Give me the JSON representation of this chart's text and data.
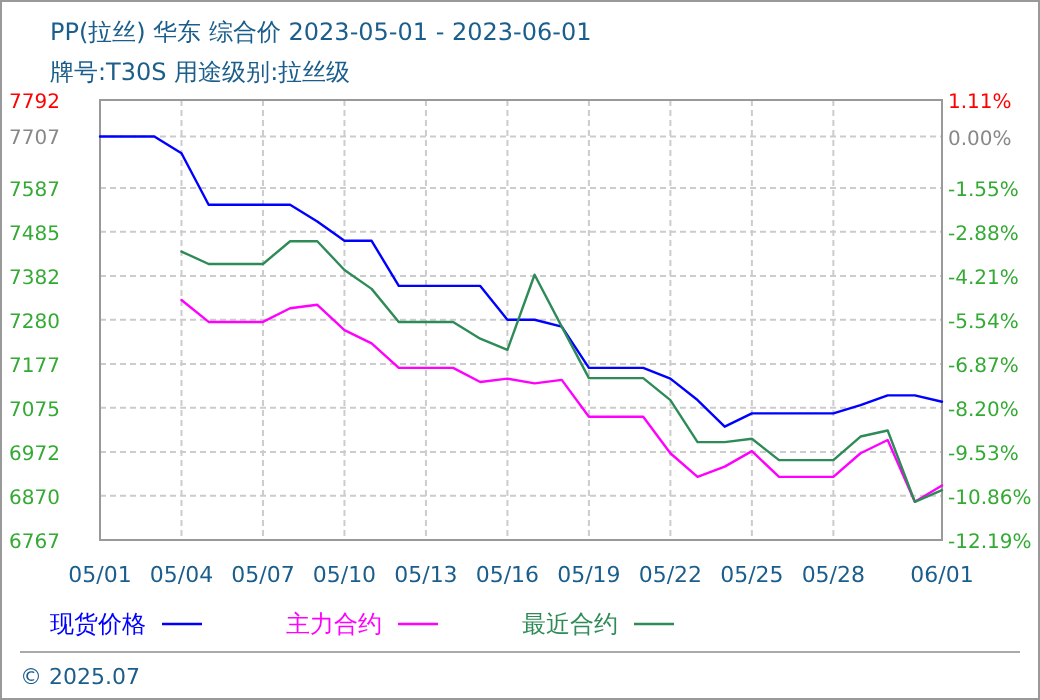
{
  "chart_data": {
    "type": "line",
    "title": "PP(拉丝) 华东 综合价 2023-05-01 - 2023-06-01",
    "subtitle": "牌号:T30S 用途级别:拉丝级",
    "annotations": [
      "© 2025.07"
    ],
    "x": [
      "2023-05-01",
      "2023-05-02",
      "2023-05-03",
      "2023-05-04",
      "2023-05-05",
      "2023-05-06",
      "2023-05-07",
      "2023-05-08",
      "2023-05-09",
      "2023-05-10",
      "2023-05-11",
      "2023-05-12",
      "2023-05-13",
      "2023-05-14",
      "2023-05-15",
      "2023-05-16",
      "2023-05-17",
      "2023-05-18",
      "2023-05-19",
      "2023-05-20",
      "2023-05-21",
      "2023-05-22",
      "2023-05-23",
      "2023-05-24",
      "2023-05-25",
      "2023-05-26",
      "2023-05-27",
      "2023-05-28",
      "2023-05-29",
      "2023-05-30",
      "2023-05-31",
      "2023-06-01"
    ],
    "series": [
      {
        "name": "现货价格",
        "color": "#0000ff",
        "values": [
          7707,
          7707,
          7707,
          7668,
          7548,
          7548,
          7548,
          7548,
          7509,
          7464,
          7464,
          7359,
          7359,
          7359,
          7359,
          7280,
          7280,
          7264,
          7168,
          7168,
          7168,
          7143,
          7093,
          7031,
          7062,
          7062,
          7062,
          7062,
          7081,
          7104,
          7104,
          7089
        ]
      },
      {
        "name": "主力合约",
        "color": "#ff00ff",
        "values": [
          null,
          null,
          null,
          7326,
          7275,
          7275,
          7275,
          7307,
          7315,
          7256,
          7225,
          7168,
          7168,
          7168,
          7135,
          7143,
          7132,
          7140,
          7054,
          7054,
          7054,
          6969,
          6914,
          6938,
          6974,
          6914,
          6914,
          6914,
          6969,
          7000,
          6856,
          6894
        ]
      },
      {
        "name": "最近合约",
        "color": "#2e8b57",
        "values": [
          null,
          null,
          null,
          7439,
          7410,
          7410,
          7410,
          7463,
          7463,
          7396,
          7352,
          7275,
          7275,
          7275,
          7236,
          7210,
          7385,
          7264,
          7144,
          7144,
          7144,
          7093,
          6995,
          6995,
          7003,
          6953,
          6953,
          6953,
          7008,
          7022,
          6856,
          6883
        ]
      }
    ],
    "xlim": [
      "2023-05-01",
      "2023-06-01"
    ],
    "xticks": [
      {
        "value": "2023-05-01",
        "label": "05/01"
      },
      {
        "value": "2023-05-04",
        "label": "05/04"
      },
      {
        "value": "2023-05-07",
        "label": "05/07"
      },
      {
        "value": "2023-05-10",
        "label": "05/10"
      },
      {
        "value": "2023-05-13",
        "label": "05/13"
      },
      {
        "value": "2023-05-16",
        "label": "05/16"
      },
      {
        "value": "2023-05-19",
        "label": "05/19"
      },
      {
        "value": "2023-05-22",
        "label": "05/22"
      },
      {
        "value": "2023-05-25",
        "label": "05/25"
      },
      {
        "value": "2023-05-28",
        "label": "05/28"
      },
      {
        "value": "2023-06-01",
        "label": "06/01"
      }
    ],
    "ylim": [
      6767,
      7792
    ],
    "yticks": [
      6767,
      6870,
      6972,
      7075,
      7177,
      7280,
      7382,
      7485,
      7587,
      7707,
      7792
    ],
    "y2lim": [
      -12.19,
      1.11
    ],
    "y2ticks": [
      {
        "value": -12.19,
        "label": "-12.19%"
      },
      {
        "value": -10.86,
        "label": "-10.86%"
      },
      {
        "value": -9.53,
        "label": "-9.53%"
      },
      {
        "value": -8.2,
        "label": "-8.20%"
      },
      {
        "value": -6.87,
        "label": "-6.87%"
      },
      {
        "value": -5.54,
        "label": "-5.54%"
      },
      {
        "value": -4.21,
        "label": "-4.21%"
      },
      {
        "value": -2.88,
        "label": "-2.88%"
      },
      {
        "value": -1.55,
        "label": "-1.55%"
      },
      {
        "value": 0,
        "label": "0.00%"
      },
      {
        "value": 1.11,
        "label": "1.11%"
      }
    ],
    "grid": true,
    "legend": "bottom",
    "line_style": "solid"
  }
}
